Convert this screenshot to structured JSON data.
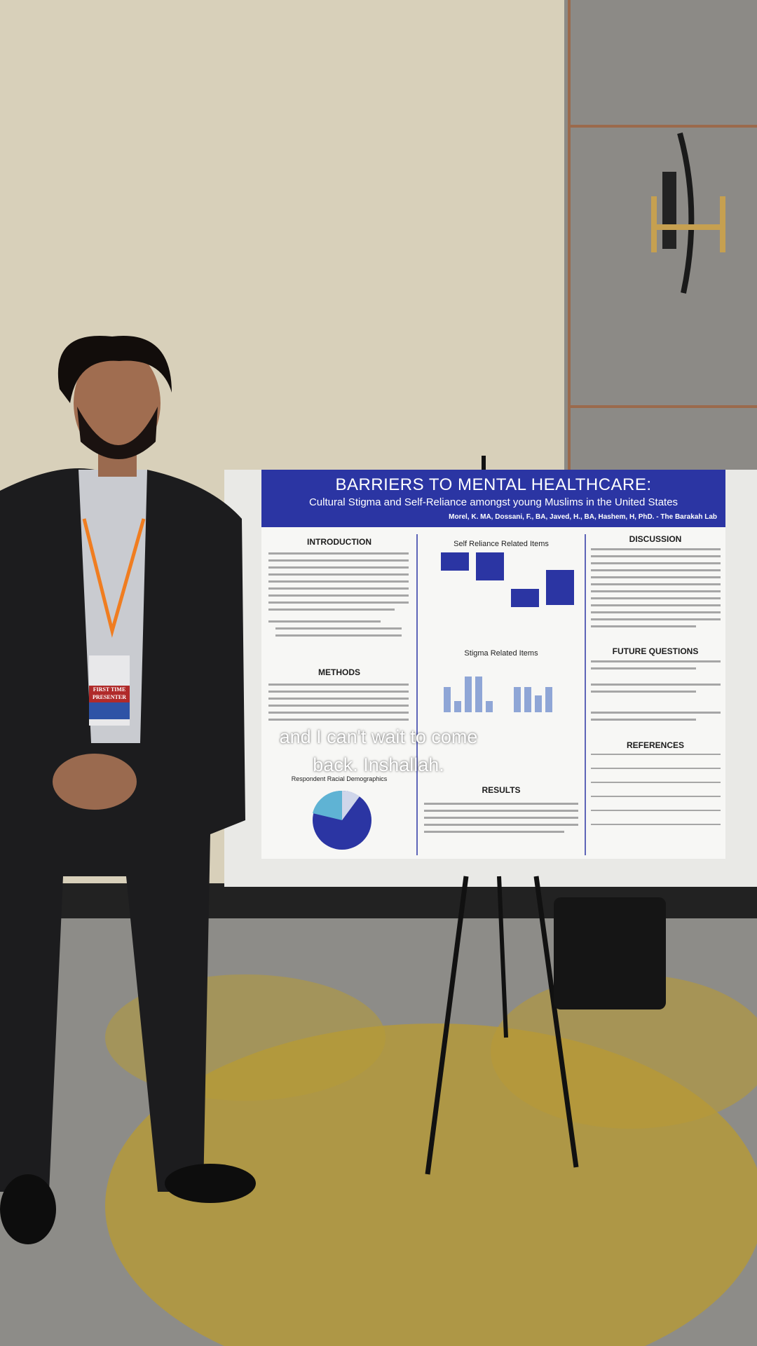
{
  "caption": {
    "lines": [
      "and I can't wait to come",
      "back. Inshallah."
    ]
  },
  "poster": {
    "title": "BARRIERS TO MENTAL HEALTHCARE:",
    "subtitle": "Cultural Stigma and Self-Reliance amongst young Muslims in the United States",
    "authors": "Morel, K. MA, Dossani, F., BA, Javed, H., BA, Hashem, H, PhD. - The Barakah Lab",
    "sections": [
      "INTRODUCTION",
      "METHODS",
      "RESULTS",
      "DISCUSSION",
      "FUTURE QUESTIONS",
      "REFERENCES"
    ],
    "charts": [
      "Self Reliance Related Items",
      "Stigma Related Items",
      "Respondent Racial Demographics"
    ]
  },
  "badge": [
    "FIRST TIME",
    "PRESENTER"
  ]
}
